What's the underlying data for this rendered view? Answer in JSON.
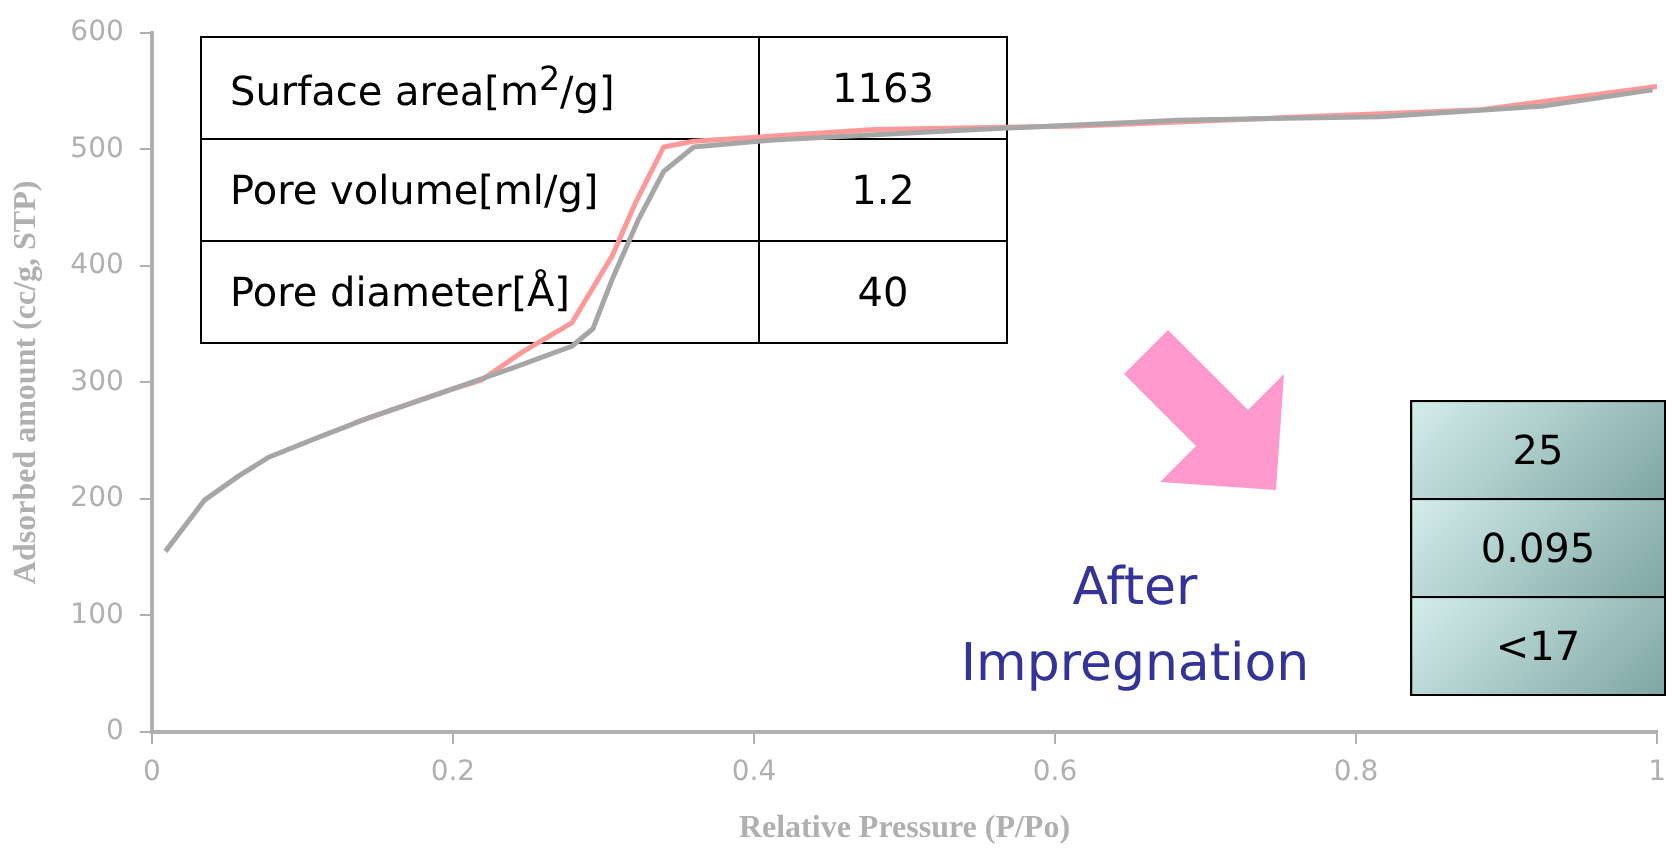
{
  "chart_data": {
    "type": "line",
    "xlabel": "Relative Pressure (P/Po)",
    "ylabel": "Adsorbed amount (cc/g, STP)",
    "xlim": [
      0,
      1
    ],
    "xticks": [
      0,
      0.2,
      0.4,
      0.6,
      0.8,
      1
    ],
    "ylim": [
      0,
      600
    ],
    "yticks": [
      0,
      100,
      200,
      300,
      400,
      500,
      600
    ],
    "grid": false,
    "legend": false,
    "marker": "none",
    "line_style": "solid",
    "series": [
      {
        "color": "#a6a6a6",
        "x": [
          0.009,
          0.035,
          0.058,
          0.078,
          0.111,
          0.145,
          0.199,
          0.239,
          0.279,
          0.293,
          0.306,
          0.323,
          0.34,
          0.36,
          0.413,
          0.548,
          0.682,
          0.816,
          0.923,
          0.997
        ],
        "values": [
          155,
          199,
          220,
          236,
          253,
          270,
          294,
          312,
          331,
          346,
          389,
          439,
          481,
          502,
          508,
          517,
          525,
          528,
          537,
          551
        ]
      },
      {
        "color": "#ff9999",
        "x": [
          0.134,
          0.199,
          0.219,
          0.246,
          0.279,
          0.306,
          0.322,
          0.34,
          0.36,
          0.48,
          0.615,
          0.749,
          0.883,
          1.0
        ],
        "values": [
          265,
          294,
          302,
          326,
          351,
          409,
          456,
          502,
          507,
          517,
          520,
          527,
          534,
          554
        ]
      }
    ],
    "annotations": [
      "Surface area[m$^{2}$/g]",
      "1163",
      "Pore volume[ml/g]",
      "1.2",
      "Pore diameter[Å]",
      "40",
      "After Impregnation",
      "25",
      "0.095",
      "<17"
    ]
  }
}
